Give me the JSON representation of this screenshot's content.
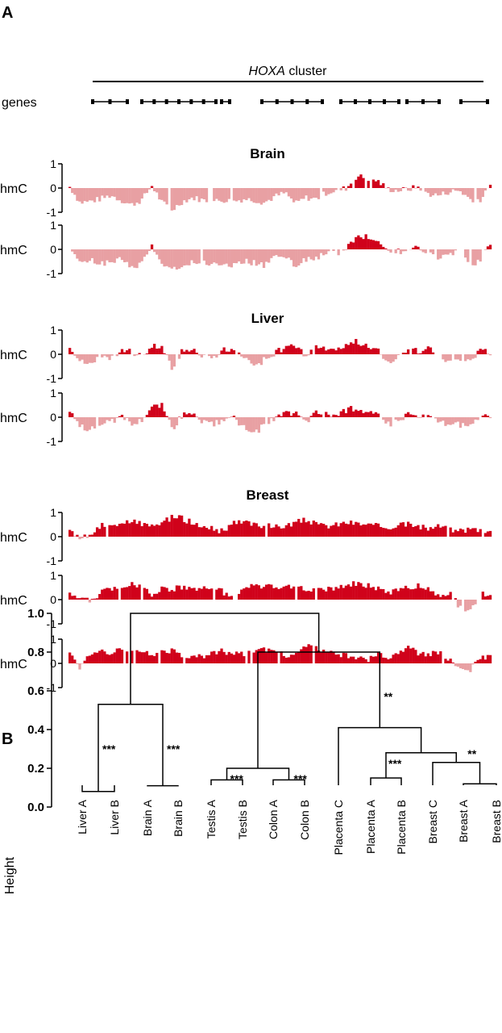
{
  "panel_a": {
    "label": "A",
    "cluster_prefix": "HOXA",
    "cluster_suffix": " cluster",
    "genes_label": "genes",
    "track_ylabel": "hmC",
    "tick_labels": [
      "1",
      "0",
      "-1"
    ],
    "colors": {
      "positive": "#d0021b",
      "negative": "#e8a0a3"
    },
    "groups": [
      {
        "title": "Brain",
        "tracks": 2
      },
      {
        "title": "Liver",
        "tracks": 2
      },
      {
        "title": "Breast",
        "tracks": 3
      }
    ]
  },
  "panel_b": {
    "label": "B",
    "ylabel": "Height"
  },
  "chart_data": [
    {
      "type": "area",
      "title": "Brain",
      "ylabel": "hmC",
      "ylim": [
        -1,
        1
      ],
      "series": [
        {
          "name": "",
          "profile": [
            0.05,
            -0.6,
            -0.55,
            -0.45,
            -0.3,
            -0.5,
            -0.7,
            -0.5,
            0.1,
            -0.6,
            -0.9,
            -0.55,
            -0.4,
            -0.5,
            -0.55,
            -0.5,
            -0.55,
            -0.45,
            -0.5,
            -0.6,
            -0.35,
            -0.2,
            -0.65,
            -0.4,
            -0.45,
            -0.2,
            -0.1,
            0.0,
            0.5,
            0.4,
            0.3,
            -0.05,
            -0.1,
            -0.05,
            0.05,
            -0.25,
            -0.3,
            -0.15,
            -0.1,
            -0.45,
            -0.5,
            0.05
          ]
        },
        {
          "name": "",
          "profile": [
            -0.05,
            -0.5,
            -0.45,
            -0.6,
            -0.55,
            -0.3,
            -0.8,
            -0.6,
            0.15,
            -0.5,
            -0.9,
            -0.6,
            -0.5,
            -0.55,
            -0.6,
            -0.6,
            -0.65,
            -0.5,
            -0.55,
            -0.7,
            -0.3,
            -0.2,
            -0.75,
            -0.4,
            -0.35,
            -0.2,
            -0.15,
            0.0,
            0.6,
            0.5,
            0.3,
            0.0,
            -0.1,
            -0.05,
            0.05,
            -0.2,
            -0.35,
            -0.1,
            -0.15,
            -0.6,
            -0.5,
            0.2
          ]
        }
      ]
    },
    {
      "type": "area",
      "title": "Liver",
      "ylabel": "hmC",
      "ylim": [
        -1,
        1
      ],
      "series": [
        {
          "name": "",
          "profile": [
            0.3,
            -0.3,
            -0.4,
            -0.1,
            -0.2,
            0.15,
            0.1,
            -0.1,
            0.35,
            0.3,
            -0.6,
            0.15,
            0.2,
            -0.05,
            -0.2,
            0.2,
            0.1,
            -0.05,
            -0.6,
            -0.2,
            0.05,
            0.3,
            0.35,
            -0.1,
            0.3,
            0.2,
            0.1,
            0.4,
            0.55,
            0.3,
            0.2,
            -0.3,
            -0.15,
            0.3,
            0.1,
            0.25,
            -0.05,
            -0.3,
            -0.2,
            -0.25,
            0.15,
            0.05
          ]
        },
        {
          "name": "",
          "profile": [
            0.2,
            -0.4,
            -0.5,
            -0.3,
            -0.2,
            0.05,
            -0.3,
            -0.1,
            0.45,
            0.5,
            -0.5,
            0.1,
            0.1,
            -0.2,
            -0.3,
            -0.1,
            -0.05,
            -0.4,
            -0.7,
            -0.3,
            -0.05,
            0.15,
            0.2,
            -0.2,
            0.2,
            0.15,
            0.1,
            0.3,
            0.4,
            0.2,
            0.1,
            -0.3,
            -0.2,
            0.2,
            0.0,
            0.05,
            -0.2,
            -0.35,
            -0.3,
            -0.4,
            0.1,
            -0.1
          ]
        }
      ]
    },
    {
      "type": "area",
      "title": "Breast",
      "ylabel": "hmC",
      "ylim": [
        -1,
        1
      ],
      "series": [
        {
          "name": "",
          "profile": [
            0.35,
            -0.1,
            0.05,
            0.45,
            0.5,
            0.55,
            0.6,
            0.55,
            0.4,
            0.6,
            0.8,
            0.75,
            0.55,
            0.4,
            0.3,
            0.2,
            0.55,
            0.6,
            0.5,
            0.45,
            0.4,
            0.45,
            0.6,
            0.7,
            0.5,
            0.45,
            0.5,
            0.6,
            0.55,
            0.5,
            0.45,
            0.4,
            0.45,
            0.5,
            0.4,
            0.35,
            0.45,
            0.3,
            0.2,
            0.35,
            0.3,
            0.25
          ]
        },
        {
          "name": "",
          "profile": [
            0.3,
            0.1,
            -0.1,
            0.3,
            0.4,
            0.45,
            0.7,
            0.55,
            0.2,
            0.5,
            0.4,
            0.55,
            0.5,
            0.45,
            0.5,
            0.3,
            0.1,
            0.5,
            0.55,
            0.6,
            0.45,
            0.5,
            0.55,
            0.4,
            0.5,
            0.45,
            0.5,
            0.55,
            0.7,
            0.6,
            0.45,
            0.3,
            0.4,
            0.5,
            0.55,
            0.4,
            0.2,
            0.3,
            -0.3,
            -0.5,
            0.2,
            0.3
          ]
        },
        {
          "name": "",
          "profile": [
            0.4,
            -0.2,
            0.45,
            0.5,
            0.4,
            0.55,
            0.45,
            0.5,
            0.35,
            0.45,
            0.5,
            0.35,
            0.3,
            0.3,
            0.45,
            0.5,
            0.4,
            0.4,
            0.45,
            0.55,
            0.5,
            0.35,
            0.4,
            0.7,
            0.6,
            0.45,
            0.4,
            0.3,
            0.2,
            0.15,
            0.35,
            0.25,
            0.5,
            0.65,
            0.4,
            0.35,
            0.45,
            0.15,
            -0.2,
            -0.3,
            0.25,
            0.3
          ]
        }
      ]
    },
    {
      "type": "dendrogram",
      "ylabel": "Height",
      "ylim": [
        0,
        1.0
      ],
      "yticks": [
        "0.0",
        "0.2",
        "0.4",
        "0.6",
        "0.8",
        "1.0"
      ],
      "leaves": [
        "Liver A",
        "Liver B",
        "Brain A",
        "Brain B",
        "Testis A",
        "Testis B",
        "Colon A",
        "Colon B",
        "Placenta C",
        "Placenta A",
        "Placenta B",
        "Breast C",
        "Breast A",
        "Breast B"
      ],
      "merges": [
        {
          "left": "Liver A",
          "right": "Liver B",
          "height": 0.08,
          "stars": "***"
        },
        {
          "left": "Brain A",
          "right": "Brain B",
          "height": 0.11,
          "stars": "***"
        },
        {
          "left": "Testis A",
          "right": "Testis B",
          "height": 0.14,
          "stars": "***"
        },
        {
          "left": "Colon A",
          "right": "Colon B",
          "height": 0.14,
          "stars": "***"
        },
        {
          "left": "Breast A",
          "right": "Breast B",
          "height": 0.12,
          "stars": ""
        },
        {
          "left": "Placenta A",
          "right": "Placenta B",
          "height": 0.15,
          "stars": "***"
        },
        {
          "left": "Testis",
          "right": "Colon",
          "height": 0.2,
          "stars": ""
        },
        {
          "left": "Breast C",
          "right": "Breast A-B",
          "height": 0.23,
          "stars": "**"
        },
        {
          "left": "Placenta A-B",
          "right": "Breast",
          "height": 0.28,
          "stars": ""
        },
        {
          "left": "Placenta C",
          "right": "Placenta A-B + Breast",
          "height": 0.41,
          "stars": ""
        },
        {
          "left": "Testis-Colon",
          "right": "Placenta-Breast",
          "height": 0.8,
          "stars": "**"
        },
        {
          "left": "Liver",
          "right": "Brain",
          "height": 0.53,
          "stars": ""
        },
        {
          "left": "Liver-Brain",
          "right": "rest",
          "height": 1.0,
          "stars": ""
        }
      ]
    }
  ]
}
